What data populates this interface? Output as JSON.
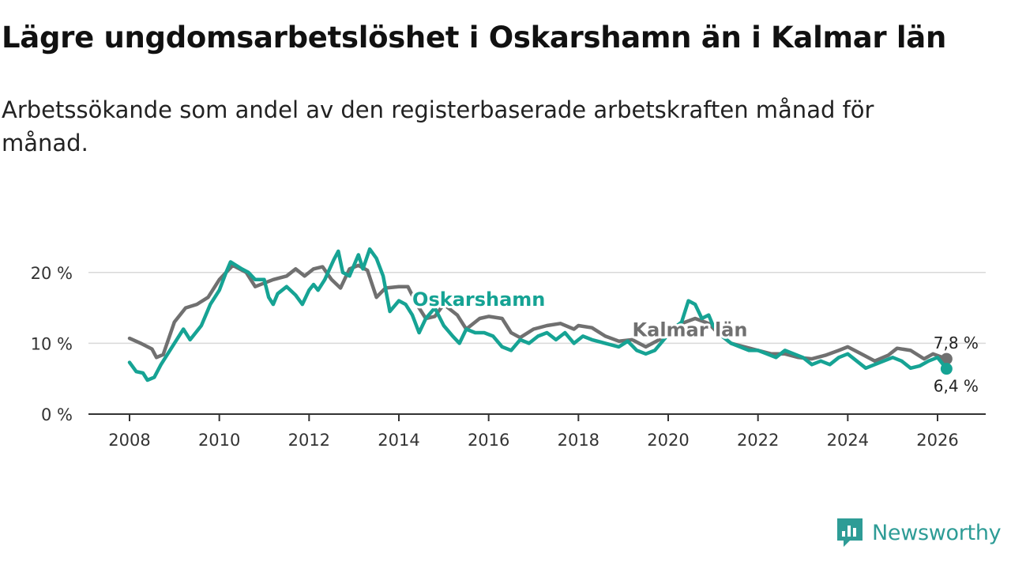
{
  "title": "Lägre ungdomsarbetslöshet i Oskarshamn än i Kalmar län",
  "subtitle": "Arbetssökande som andel av den registerbaserade arbetskraften månad för månad.",
  "brand": {
    "name": "Newsworthy",
    "color": "#2e9c96"
  },
  "chart_data": {
    "type": "line",
    "title": "Lägre ungdomsarbetslöshet i Oskarshamn än i Kalmar län",
    "xlabel": "",
    "ylabel": "",
    "xlim": [
      2007.55,
      2026.5
    ],
    "ylim": [
      0,
      25
    ],
    "x_ticks": [
      2008,
      2010,
      2012,
      2014,
      2016,
      2018,
      2020,
      2022,
      2024,
      2026
    ],
    "y_ticks": [
      {
        "value": 0,
        "label": "0 %"
      },
      {
        "value": 10,
        "label": "10 %"
      },
      {
        "value": 20,
        "label": "20 %"
      }
    ],
    "gridlines": "horizontal",
    "series": [
      {
        "name": "Kalmar län",
        "color": "#707070",
        "end_label": "7,8 %",
        "points": [
          [
            2008.0,
            10.7
          ],
          [
            2008.25,
            10.0
          ],
          [
            2008.5,
            9.2
          ],
          [
            2008.6,
            8.0
          ],
          [
            2008.75,
            8.4
          ],
          [
            2009.0,
            13.0
          ],
          [
            2009.25,
            15.0
          ],
          [
            2009.5,
            15.5
          ],
          [
            2009.75,
            16.5
          ],
          [
            2010.0,
            19.0
          ],
          [
            2010.3,
            21.0
          ],
          [
            2010.6,
            20.0
          ],
          [
            2010.8,
            18.0
          ],
          [
            2011.0,
            18.5
          ],
          [
            2011.2,
            19.0
          ],
          [
            2011.5,
            19.5
          ],
          [
            2011.7,
            20.5
          ],
          [
            2011.9,
            19.5
          ],
          [
            2012.1,
            20.5
          ],
          [
            2012.3,
            20.8
          ],
          [
            2012.5,
            19.0
          ],
          [
            2012.7,
            17.8
          ],
          [
            2012.9,
            20.5
          ],
          [
            2013.1,
            21.0
          ],
          [
            2013.3,
            20.3
          ],
          [
            2013.5,
            16.5
          ],
          [
            2013.7,
            17.8
          ],
          [
            2014.0,
            18.0
          ],
          [
            2014.2,
            18.0
          ],
          [
            2014.4,
            15.5
          ],
          [
            2014.6,
            13.5
          ],
          [
            2014.8,
            13.8
          ],
          [
            2015.0,
            15.5
          ],
          [
            2015.3,
            14.0
          ],
          [
            2015.5,
            12.0
          ],
          [
            2015.8,
            13.5
          ],
          [
            2016.0,
            13.8
          ],
          [
            2016.3,
            13.5
          ],
          [
            2016.5,
            11.5
          ],
          [
            2016.7,
            10.8
          ],
          [
            2017.0,
            12.0
          ],
          [
            2017.3,
            12.5
          ],
          [
            2017.6,
            12.8
          ],
          [
            2017.9,
            12.0
          ],
          [
            2018.0,
            12.5
          ],
          [
            2018.3,
            12.2
          ],
          [
            2018.6,
            11.0
          ],
          [
            2018.9,
            10.3
          ],
          [
            2019.2,
            10.5
          ],
          [
            2019.5,
            9.5
          ],
          [
            2019.8,
            10.5
          ],
          [
            2020.0,
            12.0
          ],
          [
            2020.3,
            12.8
          ],
          [
            2020.6,
            13.5
          ],
          [
            2020.9,
            12.8
          ],
          [
            2021.1,
            11.5
          ],
          [
            2021.4,
            10.0
          ],
          [
            2021.7,
            9.5
          ],
          [
            2022.0,
            9.0
          ],
          [
            2022.3,
            8.5
          ],
          [
            2022.6,
            8.5
          ],
          [
            2022.9,
            8.0
          ],
          [
            2023.2,
            7.8
          ],
          [
            2023.5,
            8.3
          ],
          [
            2023.8,
            9.0
          ],
          [
            2024.0,
            9.5
          ],
          [
            2024.3,
            8.5
          ],
          [
            2024.6,
            7.5
          ],
          [
            2024.9,
            8.3
          ],
          [
            2025.1,
            9.3
          ],
          [
            2025.4,
            9.0
          ],
          [
            2025.7,
            7.8
          ],
          [
            2025.9,
            8.5
          ],
          [
            2026.2,
            7.8
          ]
        ]
      },
      {
        "name": "Oskarshamn",
        "color": "#16a394",
        "end_label": "6,4 %",
        "points": [
          [
            2008.0,
            7.3
          ],
          [
            2008.15,
            6.0
          ],
          [
            2008.3,
            5.8
          ],
          [
            2008.4,
            4.8
          ],
          [
            2008.55,
            5.2
          ],
          [
            2008.7,
            7.0
          ],
          [
            2009.0,
            10.0
          ],
          [
            2009.2,
            12.0
          ],
          [
            2009.35,
            10.5
          ],
          [
            2009.6,
            12.5
          ],
          [
            2009.8,
            15.5
          ],
          [
            2010.0,
            17.5
          ],
          [
            2010.15,
            20.0
          ],
          [
            2010.25,
            21.5
          ],
          [
            2010.5,
            20.5
          ],
          [
            2010.65,
            20.0
          ],
          [
            2010.8,
            19.0
          ],
          [
            2011.0,
            19.0
          ],
          [
            2011.1,
            16.5
          ],
          [
            2011.2,
            15.5
          ],
          [
            2011.3,
            17.0
          ],
          [
            2011.5,
            18.0
          ],
          [
            2011.7,
            16.8
          ],
          [
            2011.85,
            15.5
          ],
          [
            2012.0,
            17.5
          ],
          [
            2012.1,
            18.3
          ],
          [
            2012.2,
            17.5
          ],
          [
            2012.35,
            19.0
          ],
          [
            2012.55,
            21.8
          ],
          [
            2012.65,
            23.0
          ],
          [
            2012.75,
            20.0
          ],
          [
            2012.9,
            19.5
          ],
          [
            2013.1,
            22.5
          ],
          [
            2013.2,
            20.5
          ],
          [
            2013.35,
            23.3
          ],
          [
            2013.5,
            22.0
          ],
          [
            2013.65,
            19.5
          ],
          [
            2013.8,
            14.5
          ],
          [
            2014.0,
            16.0
          ],
          [
            2014.15,
            15.5
          ],
          [
            2014.3,
            14.0
          ],
          [
            2014.45,
            11.5
          ],
          [
            2014.6,
            13.5
          ],
          [
            2014.8,
            15.0
          ],
          [
            2015.0,
            12.5
          ],
          [
            2015.2,
            11.0
          ],
          [
            2015.35,
            10.0
          ],
          [
            2015.5,
            12.0
          ],
          [
            2015.7,
            11.5
          ],
          [
            2015.9,
            11.5
          ],
          [
            2016.1,
            11.0
          ],
          [
            2016.3,
            9.5
          ],
          [
            2016.5,
            9.0
          ],
          [
            2016.7,
            10.5
          ],
          [
            2016.9,
            10.0
          ],
          [
            2017.1,
            11.0
          ],
          [
            2017.3,
            11.5
          ],
          [
            2017.5,
            10.5
          ],
          [
            2017.7,
            11.5
          ],
          [
            2017.9,
            10.0
          ],
          [
            2018.1,
            11.0
          ],
          [
            2018.3,
            10.5
          ],
          [
            2018.6,
            10.0
          ],
          [
            2018.9,
            9.5
          ],
          [
            2019.1,
            10.3
          ],
          [
            2019.3,
            9.0
          ],
          [
            2019.5,
            8.5
          ],
          [
            2019.7,
            9.0
          ],
          [
            2019.9,
            10.5
          ],
          [
            2020.1,
            12.0
          ],
          [
            2020.3,
            13.0
          ],
          [
            2020.45,
            16.0
          ],
          [
            2020.6,
            15.5
          ],
          [
            2020.75,
            13.5
          ],
          [
            2020.9,
            14.0
          ],
          [
            2021.0,
            12.5
          ],
          [
            2021.2,
            11.0
          ],
          [
            2021.4,
            10.0
          ],
          [
            2021.6,
            9.5
          ],
          [
            2021.8,
            9.0
          ],
          [
            2022.0,
            9.0
          ],
          [
            2022.2,
            8.5
          ],
          [
            2022.4,
            8.0
          ],
          [
            2022.6,
            9.0
          ],
          [
            2022.8,
            8.5
          ],
          [
            2023.0,
            8.0
          ],
          [
            2023.2,
            7.0
          ],
          [
            2023.4,
            7.5
          ],
          [
            2023.6,
            7.0
          ],
          [
            2023.8,
            8.0
          ],
          [
            2024.0,
            8.5
          ],
          [
            2024.2,
            7.5
          ],
          [
            2024.4,
            6.5
          ],
          [
            2024.6,
            7.0
          ],
          [
            2024.8,
            7.5
          ],
          [
            2025.0,
            8.0
          ],
          [
            2025.2,
            7.5
          ],
          [
            2025.4,
            6.5
          ],
          [
            2025.6,
            6.8
          ],
          [
            2025.8,
            7.5
          ],
          [
            2026.0,
            8.0
          ],
          [
            2026.2,
            6.4
          ]
        ]
      }
    ],
    "annotations": [
      {
        "series": "Oskarshamn",
        "text": "Oskarshamn",
        "at": [
          2014.3,
          15.3
        ]
      },
      {
        "series": "Kalmar län",
        "text": "Kalmar län",
        "at": [
          2019.2,
          11.0
        ]
      }
    ]
  }
}
